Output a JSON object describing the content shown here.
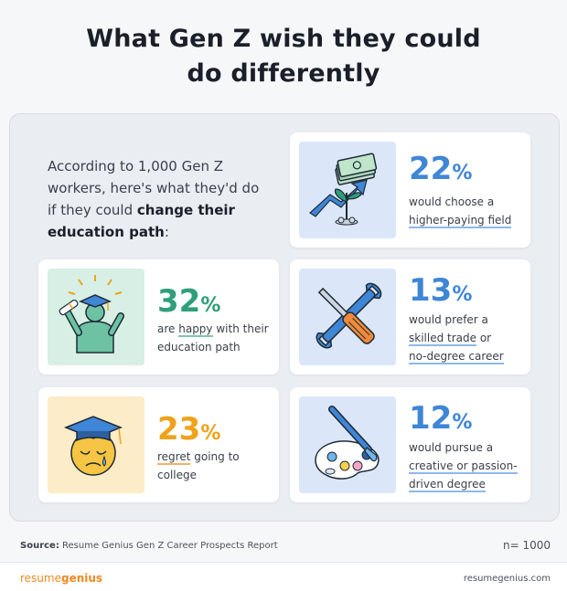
{
  "header": {
    "title_line1": "What Gen Z wish they could",
    "title_line2": "do differently"
  },
  "intro": {
    "prefix": "According to 1,000 Gen Z workers, here's what they'd do if they could ",
    "bold": "change their education path",
    "suffix": ":"
  },
  "chart_data": {
    "type": "table",
    "title": "What Gen Z wish they could do differently",
    "unit": "%",
    "items": [
      {
        "value": 22,
        "label_pre": "would choose a",
        "label_ul": "higher-paying field",
        "label_post": ""
      },
      {
        "value": 32,
        "label_pre": "are",
        "label_ul": "happy",
        "label_post": "with their education path"
      },
      {
        "value": 13,
        "label_pre": "would prefer a",
        "label_ul": "skilled trade or no-degree career",
        "label_post": ""
      },
      {
        "value": 23,
        "label_pre": "",
        "label_ul": "regret",
        "label_post": "going to college"
      },
      {
        "value": 12,
        "label_pre": "would pursue a",
        "label_ul": "creative or passion-driven degree",
        "label_post": ""
      }
    ],
    "sample_size": "n= 1000"
  },
  "cards": {
    "c22": {
      "value": "22",
      "sym": "%",
      "l1": "would choose a",
      "l2": "higher-paying field"
    },
    "c32": {
      "value": "32",
      "sym": "%",
      "l1a": "are",
      "l1b": "happy",
      "l1c": "with their",
      "l2": "education path"
    },
    "c13": {
      "value": "13",
      "sym": "%",
      "l1": "would prefer a",
      "l2": "skilled trade",
      "l2b": "or",
      "l3": "no-degree career"
    },
    "c23": {
      "value": "23",
      "sym": "%",
      "l1a": "regret",
      "l1b": "going to",
      "l2": "college"
    },
    "c12": {
      "value": "12",
      "sym": "%",
      "l1": "would pursue a",
      "l2": "creative or passion-",
      "l3": "driven degree"
    }
  },
  "colors": {
    "green": "#2f9e7a",
    "blue": "#3f86d6",
    "orange": "#f0a21a",
    "brand": "#f0891f"
  },
  "footer": {
    "source_label": "Source:",
    "source_text": "Resume Genius Gen Z Career Prospects Report",
    "n": "n= 1000",
    "brand_a": "resume",
    "brand_b": "genius",
    "site": "resumegenius.com"
  }
}
